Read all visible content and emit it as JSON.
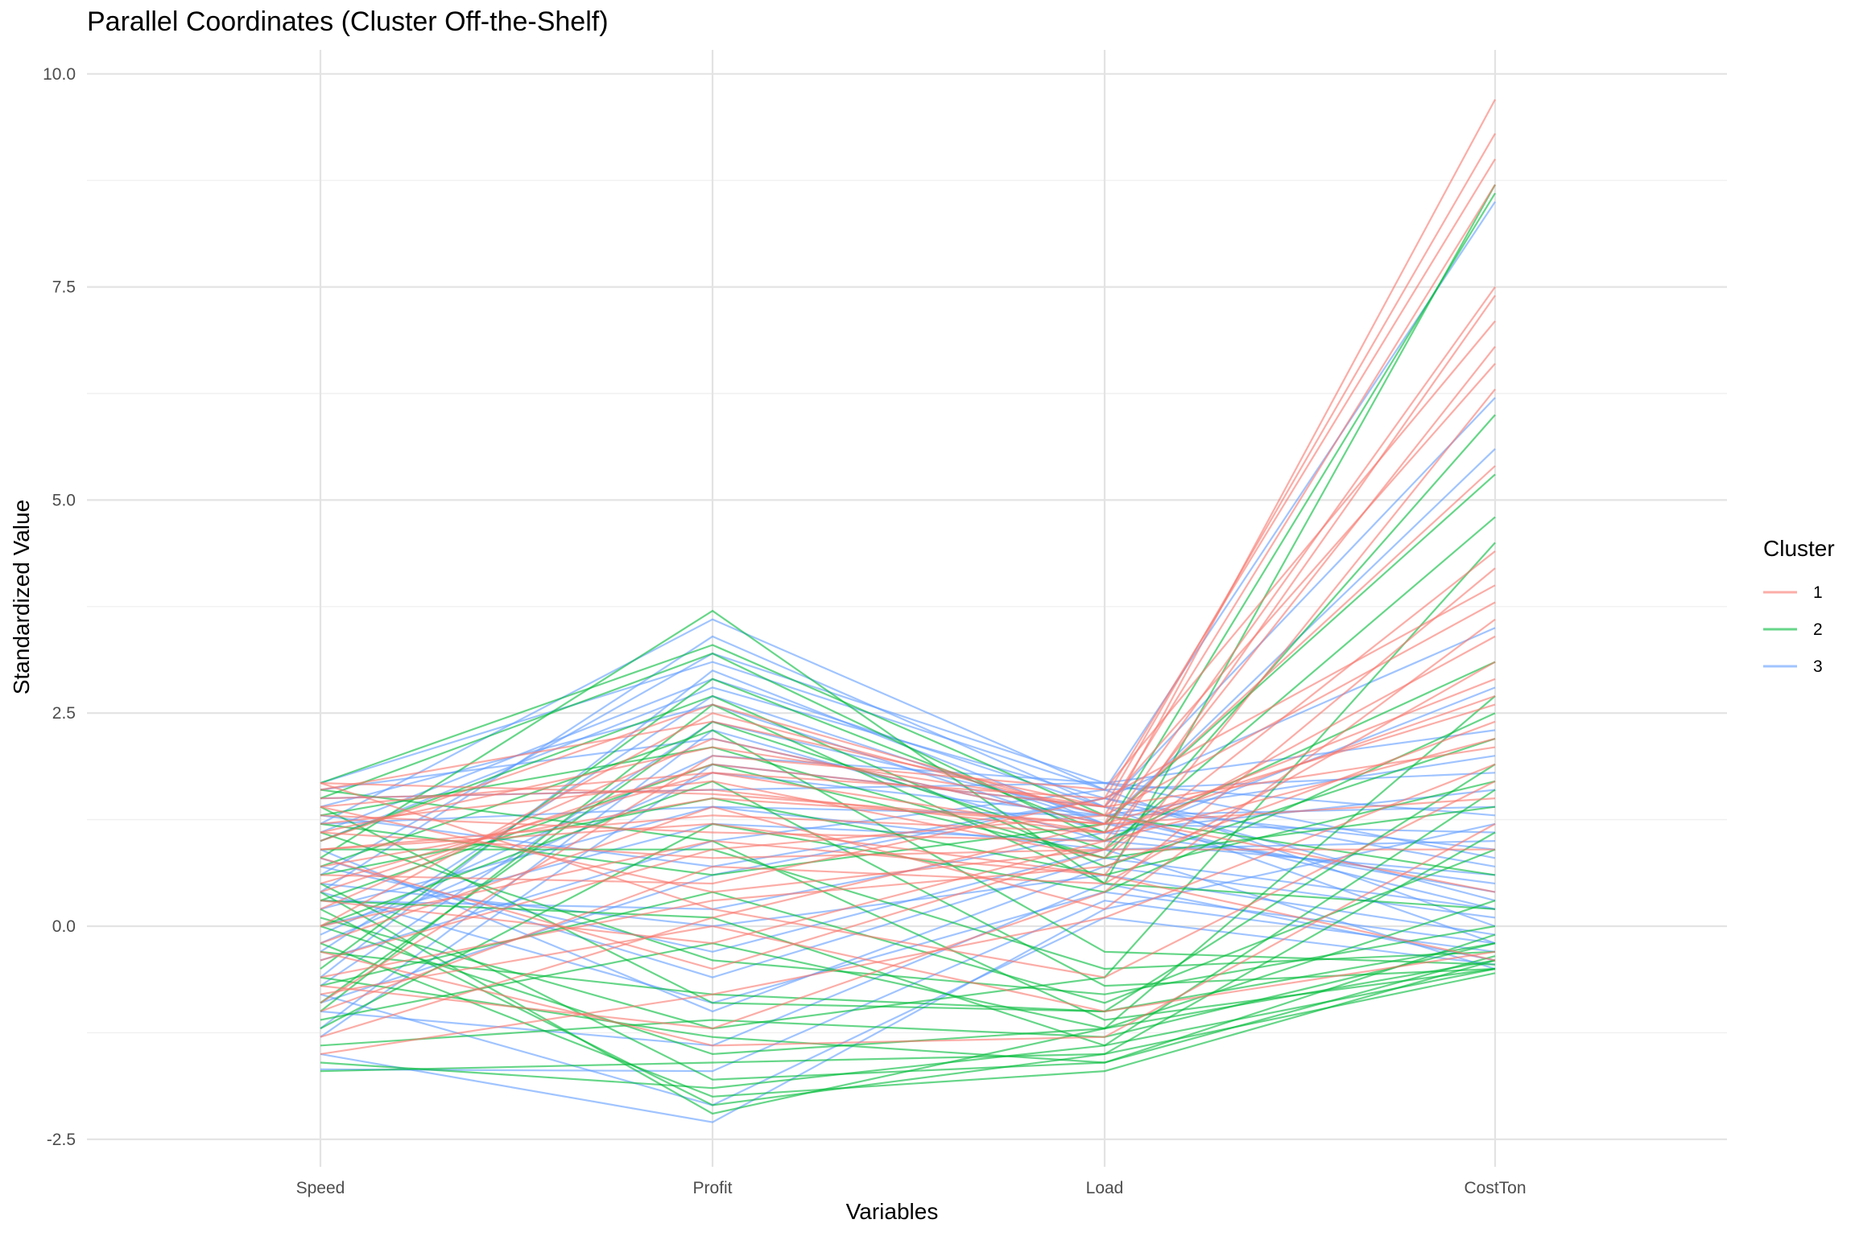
{
  "chart_data": {
    "type": "line",
    "subtype": "parallel-coordinates",
    "title": "Parallel Coordinates (Cluster Off-the-Shelf)",
    "xlabel": "Variables",
    "ylabel": "Standardized Value",
    "categories": [
      "Speed",
      "Profit",
      "Load",
      "CostTon"
    ],
    "ylim": [
      -2.85,
      10.3
    ],
    "yticks": [
      -2.5,
      0.0,
      2.5,
      5.0,
      7.5,
      10.0
    ],
    "ytick_labels": [
      "-2.5",
      "0.0",
      "2.5",
      "5.0",
      "7.5",
      "10.0"
    ],
    "grid": true,
    "legend": {
      "title": "Cluster",
      "position": "right",
      "entries": [
        "1",
        "2",
        "3"
      ]
    },
    "colors": {
      "1": "#F8766D",
      "2": "#00BA38",
      "3": "#619CFF"
    },
    "series": [
      {
        "name": "1",
        "lines": [
          [
            1.68,
            1.55,
            1.2,
            9.7
          ],
          [
            1.1,
            2.1,
            1.4,
            9.3
          ],
          [
            0.5,
            1.8,
            1.5,
            9.0
          ],
          [
            -0.4,
            0.9,
            1.3,
            8.7
          ],
          [
            0.9,
            1.3,
            1.1,
            7.5
          ],
          [
            1.4,
            0.4,
            0.9,
            7.4
          ],
          [
            -0.9,
            2.0,
            1.6,
            7.1
          ],
          [
            0.3,
            -0.2,
            1.0,
            6.8
          ],
          [
            1.6,
            2.4,
            1.4,
            6.6
          ],
          [
            0.0,
            1.0,
            0.6,
            6.3
          ],
          [
            -1.3,
            0.1,
            1.2,
            5.4
          ],
          [
            1.2,
            1.7,
            0.8,
            4.4
          ],
          [
            -0.7,
            -1.2,
            0.4,
            4.2
          ],
          [
            0.6,
            0.5,
            1.5,
            4.0
          ],
          [
            1.0,
            2.6,
            1.3,
            3.8
          ],
          [
            -0.2,
            1.4,
            0.2,
            3.6
          ],
          [
            0.8,
            -0.5,
            0.9,
            3.4
          ],
          [
            -1.0,
            0.7,
            0.5,
            3.1
          ],
          [
            1.5,
            1.6,
            1.1,
            2.9
          ],
          [
            0.2,
            2.2,
            1.2,
            2.6
          ],
          [
            -0.6,
            0.3,
            0.7,
            2.4
          ],
          [
            1.3,
            1.1,
            1.0,
            2.2
          ],
          [
            0.4,
            1.9,
            1.4,
            2.1
          ],
          [
            -1.5,
            -0.8,
            0.1,
            1.9
          ],
          [
            1.68,
            0.2,
            -0.6,
            1.7
          ],
          [
            0.7,
            1.5,
            1.2,
            1.5
          ],
          [
            -0.3,
            -1.4,
            -1.3,
            1.2
          ],
          [
            1.1,
            0.8,
            0.9,
            0.9
          ],
          [
            0.0,
            2.5,
            1.3,
            0.4
          ],
          [
            -0.8,
            0.0,
            -1.0,
            -0.3
          ],
          [
            0.9,
            1.2,
            0.6,
            -0.4
          ],
          [
            1.4,
            1.8,
            1.1,
            2.7
          ]
        ]
      },
      {
        "name": "2",
        "lines": [
          [
            0.8,
            3.7,
            0.5,
            8.7
          ],
          [
            -0.5,
            2.9,
            1.1,
            8.6
          ],
          [
            0.3,
            1.9,
            0.8,
            6.0
          ],
          [
            1.2,
            0.6,
            1.2,
            5.3
          ],
          [
            -0.9,
            2.4,
            0.9,
            4.8
          ],
          [
            0.1,
            -1.2,
            -0.6,
            4.5
          ],
          [
            1.5,
            3.2,
            1.0,
            3.1
          ],
          [
            0.4,
            -2.2,
            -1.2,
            2.7
          ],
          [
            -1.2,
            1.2,
            0.4,
            2.5
          ],
          [
            1.0,
            2.7,
            0.7,
            2.2
          ],
          [
            -0.3,
            -0.8,
            -1.0,
            1.9
          ],
          [
            0.6,
            1.5,
            0.6,
            1.7
          ],
          [
            -1.6,
            -1.9,
            -1.4,
            1.6
          ],
          [
            1.3,
            2.1,
            0.8,
            1.4
          ],
          [
            0.2,
            -2.1,
            -1.5,
            1.1
          ],
          [
            -0.7,
            0.4,
            -0.9,
            0.9
          ],
          [
            1.68,
            3.3,
            1.3,
            0.6
          ],
          [
            0.0,
            -1.5,
            -1.2,
            0.3
          ],
          [
            -1.0,
            2.6,
            0.5,
            0.2
          ],
          [
            1.1,
            -0.4,
            -0.8,
            0.0
          ],
          [
            0.5,
            -1.8,
            -1.6,
            -0.1
          ],
          [
            -1.4,
            -1.1,
            -1.3,
            -0.2
          ],
          [
            0.9,
            0.9,
            -0.5,
            -0.3
          ],
          [
            -0.2,
            -2.0,
            -1.7,
            -0.4
          ],
          [
            1.6,
            1.0,
            -1.1,
            -0.5
          ],
          [
            -1.7,
            -1.6,
            -1.5,
            -0.55
          ],
          [
            0.7,
            2.3,
            -0.3,
            -0.45
          ],
          [
            -0.6,
            -1.3,
            -1.6,
            -0.35
          ],
          [
            0.3,
            0.1,
            -1.4,
            -0.5
          ],
          [
            1.4,
            -0.9,
            -1.0,
            -0.2
          ],
          [
            -1.1,
            -0.2,
            -1.2,
            -0.4
          ],
          [
            0.0,
            1.7,
            -0.7,
            -0.5
          ]
        ]
      },
      {
        "name": "3",
        "lines": [
          [
            1.2,
            3.6,
            1.6,
            8.5
          ],
          [
            0.4,
            3.4,
            1.4,
            6.2
          ],
          [
            -0.6,
            3.0,
            1.2,
            5.6
          ],
          [
            1.0,
            2.8,
            1.5,
            3.5
          ],
          [
            -1.2,
            2.3,
            1.0,
            2.8
          ],
          [
            0.6,
            3.2,
            1.68,
            2.3
          ],
          [
            -0.2,
            1.8,
            1.3,
            2.0
          ],
          [
            1.4,
            2.6,
            1.1,
            1.6
          ],
          [
            -1.5,
            -2.3,
            0.2,
            1.2
          ],
          [
            0.2,
            1.4,
            0.9,
            1.0
          ],
          [
            -0.9,
            0.6,
            1.5,
            0.7
          ],
          [
            1.6,
            2.2,
            1.2,
            0.4
          ],
          [
            0.8,
            -0.6,
            0.8,
            0.2
          ],
          [
            -0.4,
            1.0,
            1.6,
            0.0
          ],
          [
            1.1,
            2.9,
            1.4,
            -0.2
          ],
          [
            -1.0,
            -1.4,
            0.5,
            -0.4
          ],
          [
            0.3,
            0.2,
            1.1,
            0.5
          ],
          [
            1.5,
            1.6,
            1.68,
            0.8
          ],
          [
            -0.7,
            2.4,
            1.3,
            1.4
          ],
          [
            0.9,
            -1.0,
            0.7,
            0.1
          ],
          [
            -1.68,
            -1.7,
            0.3,
            -0.3
          ],
          [
            0.0,
            1.2,
            1.0,
            0.6
          ],
          [
            1.3,
            0.7,
            1.5,
            0.3
          ],
          [
            -0.3,
            2.7,
            1.2,
            1.1
          ],
          [
            0.7,
            -0.3,
            0.9,
            -0.5
          ],
          [
            -1.3,
            1.9,
            1.4,
            0.9
          ],
          [
            1.68,
            3.1,
            1.6,
            1.8
          ],
          [
            0.5,
            0.0,
            0.6,
            -0.1
          ],
          [
            -0.8,
            -2.1,
            0.1,
            -0.45
          ],
          [
            1.2,
            1.4,
            1.3,
            0.2
          ],
          [
            -0.1,
            2.0,
            1.68,
            1.3
          ],
          [
            0.4,
            -0.9,
            0.4,
            -0.2
          ]
        ]
      }
    ]
  }
}
